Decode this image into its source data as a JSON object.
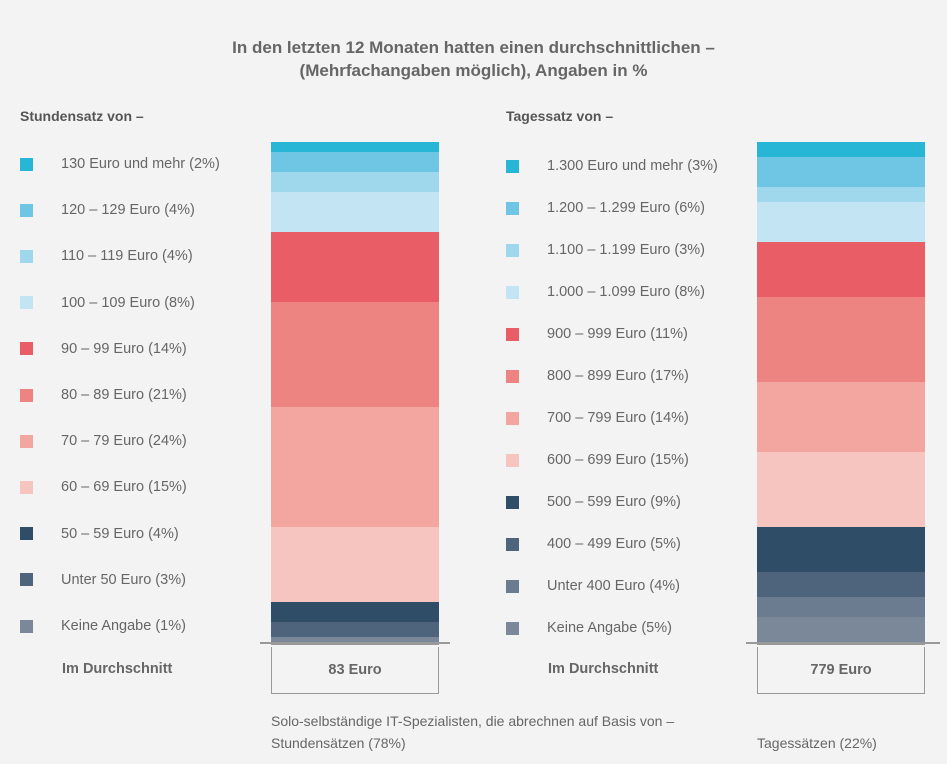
{
  "title_line1": "In den letzten 12 Monaten hatten einen durchschnittlichen –",
  "title_line2": "(Mehrfachangaben möglich), Angaben in %",
  "chart_data": [
    {
      "type": "bar",
      "stacked": true,
      "title": "Stundensatz von –",
      "categories": [
        "130 Euro und mehr",
        "120 – 129 Euro",
        "110 – 119 Euro",
        "100 – 109 Euro",
        "90 – 99 Euro",
        "80 – 89 Euro",
        "70 – 79 Euro",
        "60 – 69 Euro",
        "50 – 59 Euro",
        "Unter 50 Euro",
        "Keine Angabe"
      ],
      "labels": [
        "130 Euro und mehr (2%)",
        "120 – 129 Euro (4%)",
        "110 – 119 Euro (4%)",
        "100 – 109 Euro (8%)",
        "90 – 99 Euro (14%)",
        "80 – 89 Euro (21%)",
        "70 – 79 Euro (24%)",
        "60 – 69 Euro (15%)",
        "50 – 59 Euro (4%)",
        "Unter 50 Euro (3%)",
        "Keine Angabe (1%)"
      ],
      "values": [
        2,
        4,
        4,
        8,
        14,
        21,
        24,
        15,
        4,
        3,
        1
      ],
      "colors": [
        "#27b6d6",
        "#6ec6e4",
        "#9fd7ec",
        "#c3e4f2",
        "#e85d66",
        "#ee8482",
        "#f3a6a0",
        "#f7c5c0",
        "#2f4d66",
        "#4e647c",
        "#7a889a"
      ],
      "average_label": "Im Durchschnitt",
      "average_value": "83 Euro",
      "footnote_line1": "Solo-selbständige IT-Spezialisten, die abrechnen auf Basis von –",
      "footnote_line2": "Stundensätzen (78%)"
    },
    {
      "type": "bar",
      "stacked": true,
      "title": "Tagessatz von –",
      "categories": [
        "1.300 Euro und mehr",
        "1.200 – 1.299 Euro",
        "1.100 – 1.199 Euro",
        "1.000 – 1.099 Euro",
        "900 – 999 Euro",
        "800 – 899 Euro",
        "700 – 799 Euro",
        "600 – 699 Euro",
        "500 – 599 Euro",
        "400 – 499 Euro",
        "Unter 400 Euro",
        "Keine Angabe"
      ],
      "labels": [
        "1.300 Euro und mehr (3%)",
        "1.200 – 1.299 Euro (6%)",
        "1.100 – 1.199 Euro (3%)",
        "1.000 – 1.099 Euro (8%)",
        "900 – 999 Euro (11%)",
        "800 – 899 Euro (17%)",
        "700 – 799 Euro (14%)",
        "600 – 699 Euro (15%)",
        "500 – 599 Euro (9%)",
        "400 – 499 Euro (5%)",
        "Unter 400 Euro (4%)",
        "Keine Angabe (5%)"
      ],
      "values": [
        3,
        6,
        3,
        8,
        11,
        17,
        14,
        15,
        9,
        5,
        4,
        5
      ],
      "colors": [
        "#27b6d6",
        "#6ec6e4",
        "#9fd7ec",
        "#c3e4f2",
        "#e85d66",
        "#ee8482",
        "#f3a6a0",
        "#f7c5c0",
        "#2f4d66",
        "#4e647c",
        "#6c7c90",
        "#7a889a"
      ],
      "average_label": "Im Durchschnitt",
      "average_value": "779 Euro",
      "footnote_line1": "",
      "footnote_line2": "Tagessätzen (22%)"
    }
  ]
}
